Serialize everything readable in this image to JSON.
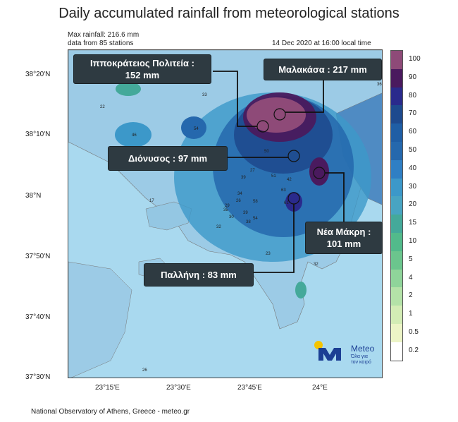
{
  "title": "Daily accumulated rainfall from meteorological stations",
  "meta": {
    "max_rainfall": "Max rainfall: 216.6 mm",
    "stations": "data from 85 stations",
    "datetime": "14 Dec 2020 at 16:00 local time"
  },
  "axes": {
    "lat_labels": [
      "38°20'N",
      "38°10'N",
      "38°N",
      "37°50'N",
      "37°40'N",
      "37°30'N"
    ],
    "lon_labels": [
      "23°15'E",
      "23°30'E",
      "23°45'E",
      "24°E"
    ]
  },
  "callouts": {
    "ippokrateios": {
      "line1": "Ιπποκράτειος Πολιτεία :",
      "line2": "152 mm",
      "value_mm": 152
    },
    "malakasa": {
      "line1": "Μαλακάσα : 217 mm",
      "value_mm": 217
    },
    "dionysos": {
      "line1": "Διόνυσος : 97 mm",
      "value_mm": 97
    },
    "nea_makri": {
      "line1": "Νέα Μάκρη :",
      "line2": "101 mm",
      "value_mm": 101
    },
    "pallini": {
      "line1": "Παλλήνη : 83 mm",
      "value_mm": 83
    }
  },
  "legend": {
    "levels": [
      "100",
      "90",
      "80",
      "70",
      "60",
      "50",
      "40",
      "30",
      "20",
      "15",
      "10",
      "5",
      "4",
      "2",
      "1",
      "0.5",
      "0.2"
    ],
    "colors": [
      "#8e4a78",
      "#4a1a5e",
      "#2a2a8c",
      "#1e4a8e",
      "#1f5ea5",
      "#2568ad",
      "#2f7fc4",
      "#3c98c9",
      "#48a4c2",
      "#44a99a",
      "#52ba8b",
      "#6bc58d",
      "#8fd49a",
      "#b4e2a8",
      "#d3ecb5",
      "#ecf4c6",
      "#ffffff"
    ]
  },
  "stations": {
    "labels": [
      "33",
      "22",
      "46",
      "54",
      "36",
      "17",
      "37",
      "50",
      "27",
      "39",
      "34",
      "26",
      "35",
      "39",
      "32",
      "23",
      "32",
      "26",
      "58",
      "51",
      "42",
      "29",
      "30",
      "38",
      "54",
      "63",
      "61"
    ]
  },
  "logo": {
    "name": "Meteo",
    "tagline1": "Όλα για",
    "tagline2": "τον καιρό"
  },
  "footer": "National Observatory of Athens, Greece - meteo.gr"
}
